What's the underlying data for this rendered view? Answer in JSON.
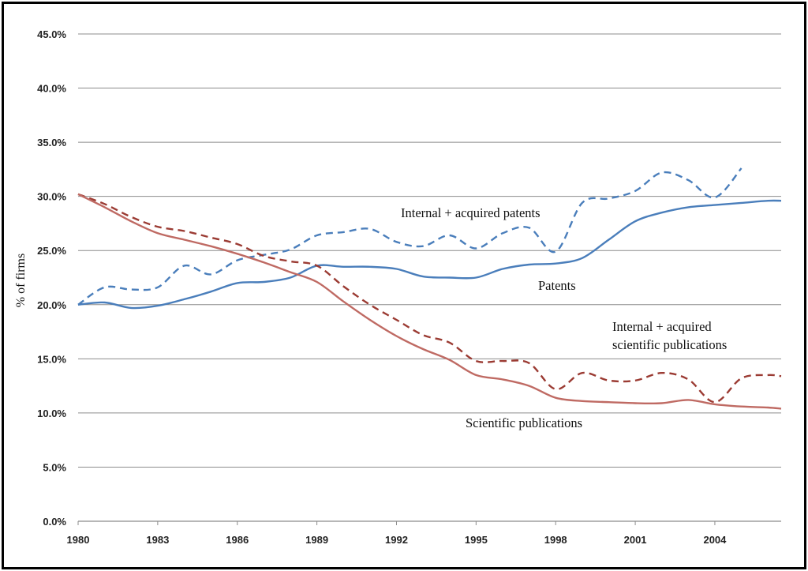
{
  "chart_data": {
    "type": "line",
    "ylabel": "% of firms",
    "xlabel": "",
    "xlim": [
      1980,
      2006.5
    ],
    "ylim": [
      0,
      45
    ],
    "x_ticks": [
      1980,
      1983,
      1986,
      1989,
      1992,
      1995,
      1998,
      2001,
      2004
    ],
    "x_tick_labels": [
      "1980",
      "1983",
      "1986",
      "1989",
      "1992",
      "1995",
      "1998",
      "2001",
      "2004"
    ],
    "y_ticks": [
      0,
      5,
      10,
      15,
      20,
      25,
      30,
      35,
      40,
      45
    ],
    "y_tick_labels": [
      "0.0%",
      "5.0%",
      "10.0%",
      "15.0%",
      "20.0%",
      "25.0%",
      "30.0%",
      "35.0%",
      "40.0%",
      "45.0%"
    ],
    "grid": "horizontal",
    "series": [
      {
        "name": "Internal + acquired patents",
        "color": "#4a7ebb",
        "dash": "dashed",
        "x": [
          1980,
          1981,
          1982,
          1983,
          1984,
          1985,
          1986,
          1987,
          1988,
          1989,
          1990,
          1991,
          1992,
          1993,
          1994,
          1995,
          1996,
          1997,
          1998,
          1999,
          2000,
          2001,
          2002,
          2003,
          2004,
          2005
        ],
        "y": [
          20.0,
          21.6,
          21.4,
          21.6,
          23.6,
          22.8,
          24.1,
          24.6,
          25.1,
          26.4,
          26.7,
          27.0,
          25.8,
          25.4,
          26.4,
          25.2,
          26.6,
          27.1,
          24.9,
          29.4,
          29.8,
          30.5,
          32.2,
          31.5,
          29.9,
          32.6
        ]
      },
      {
        "name": "Patents",
        "color": "#4a7ebb",
        "dash": "solid",
        "x": [
          1980,
          1981,
          1982,
          1983,
          1984,
          1985,
          1986,
          1987,
          1988,
          1989,
          1990,
          1991,
          1992,
          1993,
          1994,
          1995,
          1996,
          1997,
          1998,
          1999,
          2000,
          2001,
          2002,
          2003,
          2004,
          2005,
          2006,
          2006.5
        ],
        "y": [
          20.0,
          20.2,
          19.7,
          19.9,
          20.5,
          21.2,
          22.0,
          22.1,
          22.5,
          23.6,
          23.5,
          23.5,
          23.3,
          22.6,
          22.5,
          22.5,
          23.3,
          23.7,
          23.8,
          24.3,
          26.0,
          27.7,
          28.5,
          29.0,
          29.2,
          29.4,
          29.6,
          29.6
        ]
      },
      {
        "name": "Internal + acquired scientific publications",
        "color": "#9b3b33",
        "dash": "dashed",
        "x": [
          1980,
          1981,
          1982,
          1983,
          1984,
          1985,
          1986,
          1987,
          1988,
          1989,
          1990,
          1991,
          1992,
          1993,
          1994,
          1995,
          1996,
          1997,
          1998,
          1999,
          2000,
          2001,
          2002,
          2003,
          2004,
          2005,
          2006,
          2006.5
        ],
        "y": [
          30.2,
          29.3,
          28.1,
          27.2,
          26.8,
          26.2,
          25.6,
          24.5,
          24.0,
          23.6,
          21.7,
          20.0,
          18.6,
          17.2,
          16.5,
          14.8,
          14.8,
          14.6,
          12.2,
          13.7,
          13.0,
          13.0,
          13.7,
          13.1,
          11.0,
          13.2,
          13.5,
          13.4
        ]
      },
      {
        "name": "Scientific publications",
        "color": "#bf6a63",
        "dash": "solid",
        "x": [
          1980,
          1981,
          1982,
          1983,
          1984,
          1985,
          1986,
          1987,
          1988,
          1989,
          1990,
          1991,
          1992,
          1993,
          1994,
          1995,
          1996,
          1997,
          1998,
          1999,
          2000,
          2001,
          2002,
          2003,
          2004,
          2005,
          2006,
          2006.5
        ],
        "y": [
          30.2,
          29.0,
          27.7,
          26.6,
          26.0,
          25.4,
          24.7,
          23.9,
          23.0,
          22.1,
          20.3,
          18.6,
          17.1,
          15.9,
          14.9,
          13.5,
          13.1,
          12.5,
          11.4,
          11.1,
          11.0,
          10.9,
          10.9,
          11.2,
          10.8,
          10.6,
          10.5,
          10.4
        ]
      }
    ],
    "annotations": [
      {
        "text": "Internal + acquired patents"
      },
      {
        "text": "Patents"
      },
      {
        "text": "Internal + acquired"
      },
      {
        "text": "scientific publications"
      },
      {
        "text": "Scientific publications"
      }
    ]
  }
}
